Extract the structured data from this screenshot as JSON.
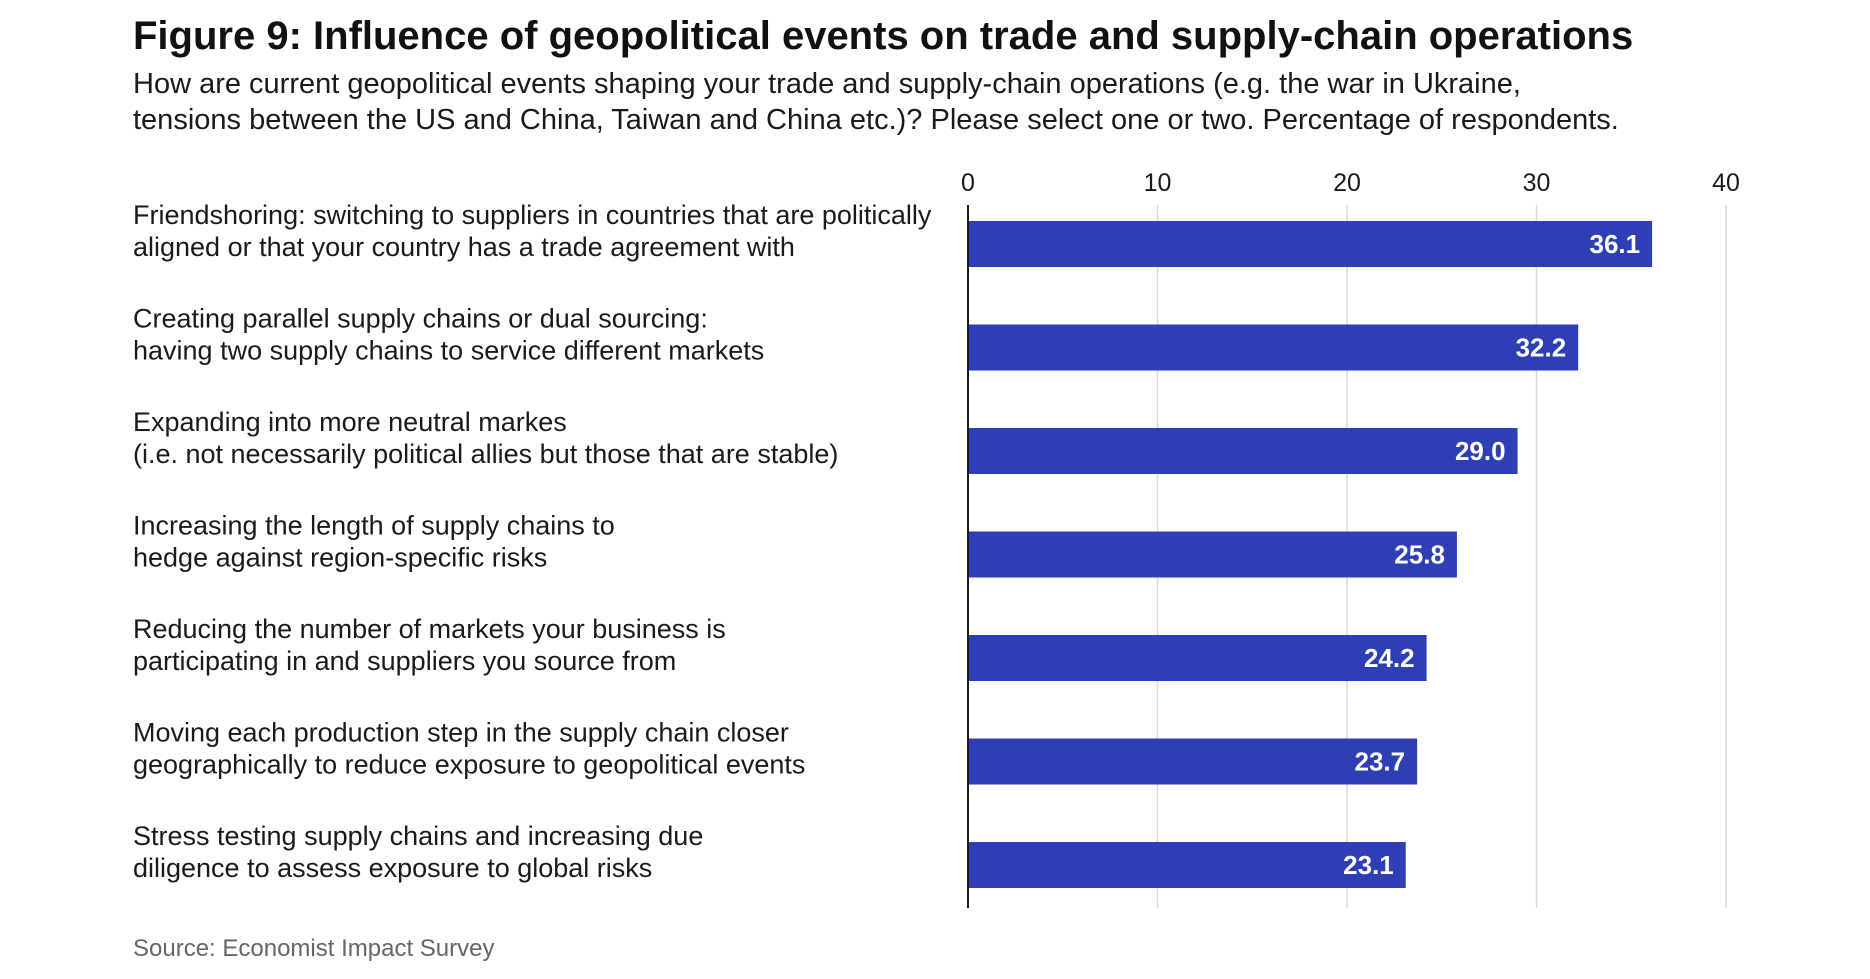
{
  "title": "Figure 9: Influence of geopolitical events on trade and supply-chain operations",
  "subtitle_lines": [
    "How are current geopolitical events shaping your trade and supply-chain operations (e.g. the war in Ukraine,",
    "tensions between the US and China, Taiwan and China etc.)? Please select one or two. Percentage of respondents."
  ],
  "source": "Source: Economist Impact Survey",
  "colors": {
    "bar": "#2E3FB5",
    "grid": "#d9d9d9",
    "axis": "#1a1a1a"
  },
  "chart_data": {
    "type": "bar",
    "orientation": "horizontal",
    "categories": [
      [
        "Friendshoring: switching to suppliers in countries that are politically",
        "aligned or that your country has a trade agreement with"
      ],
      [
        "Creating parallel supply chains or dual sourcing:",
        "having two supply chains to service different markets"
      ],
      [
        "Expanding into more neutral markes",
        "(i.e. not necessarily political allies but those that are stable)"
      ],
      [
        "Increasing the length of supply chains to",
        "hedge against region-specific risks"
      ],
      [
        "Reducing the number of markets your business is",
        "participating in and suppliers you source from"
      ],
      [
        "Moving each production step in the supply chain closer",
        "geographically to reduce exposure to geopolitical events"
      ],
      [
        "Stress testing supply chains and increasing due",
        "diligence to assess exposure to global risks"
      ]
    ],
    "values": [
      36.1,
      32.2,
      29.0,
      25.8,
      24.2,
      23.7,
      23.1
    ],
    "value_labels": [
      "36.1",
      "32.2",
      "29.0",
      "25.8",
      "24.2",
      "23.7",
      "23.1"
    ],
    "xlim": [
      0,
      40
    ],
    "ticks": [
      0,
      10,
      20,
      30,
      40
    ],
    "tick_labels": [
      "0",
      "10",
      "20",
      "30",
      "40"
    ],
    "axis_position": "top",
    "grid": true,
    "legend": "none"
  }
}
